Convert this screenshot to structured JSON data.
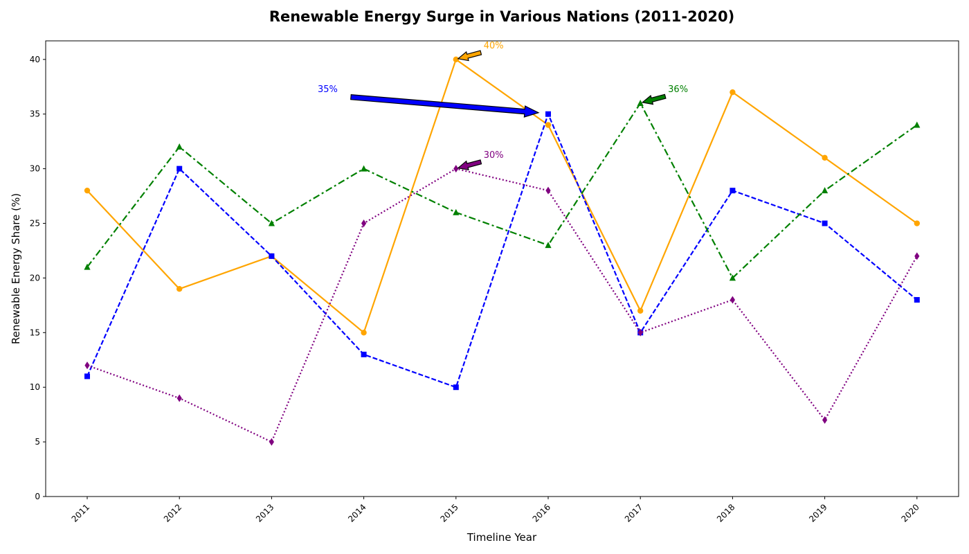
{
  "chart_data": {
    "type": "line",
    "title": "Renewable Energy Surge in Various Nations (2011-2020)",
    "xlabel": "Timeline Year",
    "ylabel": "Renewable Energy Share (%)",
    "ylim": [
      0,
      41.7
    ],
    "yticks": [
      0,
      5,
      10,
      15,
      20,
      25,
      30,
      35,
      40
    ],
    "x": [
      "2011",
      "2012",
      "2013",
      "2014",
      "2015",
      "2016",
      "2017",
      "2018",
      "2019",
      "2020"
    ],
    "grid": false,
    "legend": "none",
    "series": [
      {
        "color": "#ffa500",
        "line_style": "solid",
        "marker": "circle",
        "values": [
          28,
          19,
          22,
          15,
          40,
          34,
          17,
          37,
          31,
          25
        ]
      },
      {
        "color": "#0000ff",
        "line_style": "dashed",
        "marker": "square",
        "values": [
          11,
          30,
          22,
          13,
          10,
          35,
          15,
          28,
          25,
          18
        ]
      },
      {
        "color": "#008000",
        "line_style": "dashdot",
        "marker": "triangle",
        "values": [
          21,
          32,
          25,
          30,
          26,
          23,
          36,
          20,
          28,
          34
        ]
      },
      {
        "color": "#800080",
        "line_style": "dotted",
        "marker": "diamond",
        "values": [
          12,
          9,
          5,
          25,
          30,
          28,
          15,
          18,
          7,
          22
        ]
      }
    ],
    "annotations": [
      {
        "text": "40%",
        "color": "#ffa500",
        "x": "2015",
        "y": 40,
        "text_x": 2015.3,
        "text_y": 41
      },
      {
        "text": "35%",
        "color": "#0000ff",
        "x": "2016",
        "y": 35,
        "text_x": 2013.5,
        "text_y": 37
      },
      {
        "text": "36%",
        "color": "#008000",
        "x": "2017",
        "y": 36,
        "text_x": 2017.3,
        "text_y": 37
      },
      {
        "text": "30%",
        "color": "#800080",
        "x": "2015",
        "y": 30,
        "text_x": 2015.3,
        "text_y": 31
      }
    ]
  }
}
